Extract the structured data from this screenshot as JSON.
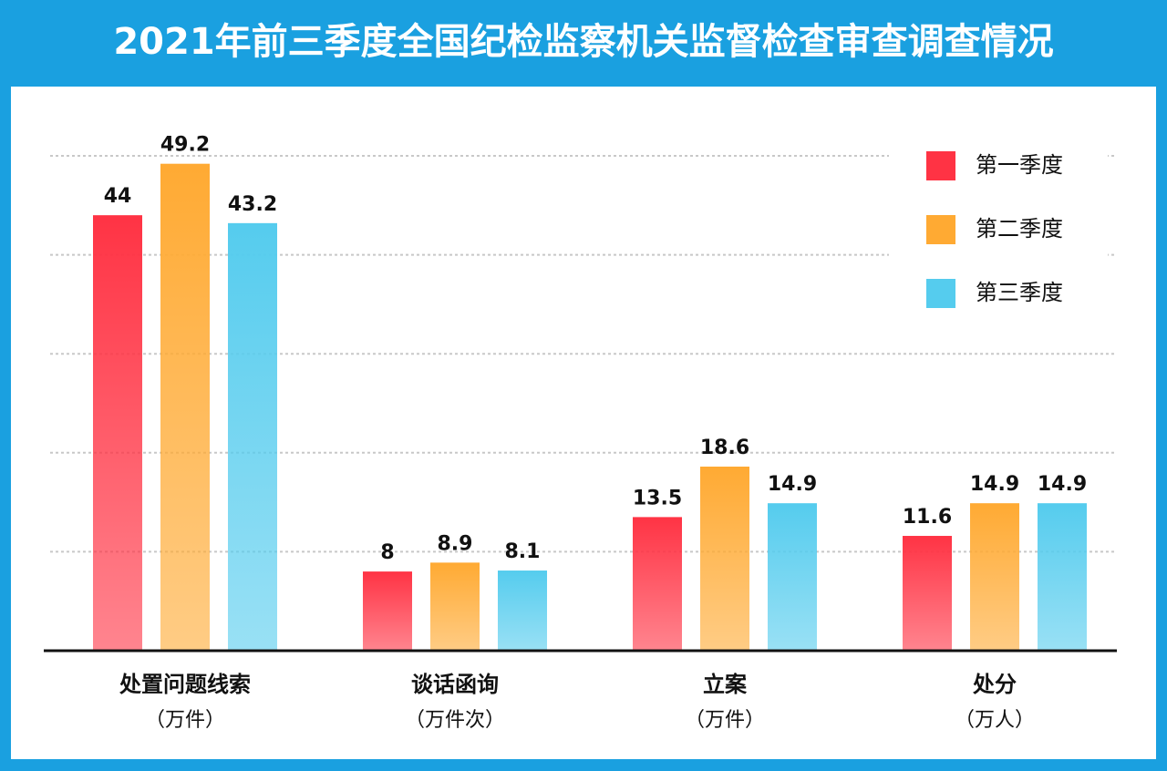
{
  "chart_data": {
    "type": "bar",
    "title": "2021年前三季度全国纪检监察机关监督检查审查调查情况",
    "categories": [
      "处置问题线索",
      "谈话函询",
      "立案",
      "处分"
    ],
    "category_units": [
      "（万件）",
      "（万件次）",
      "（万件）",
      "（万人）"
    ],
    "series": [
      {
        "name": "第一季度",
        "color": "#ff3344",
        "values": [
          44,
          8,
          13.5,
          11.6
        ]
      },
      {
        "name": "第二季度",
        "color": "#ffaa33",
        "values": [
          49.2,
          8.9,
          18.6,
          14.9
        ]
      },
      {
        "name": "第三季度",
        "color": "#55ccee",
        "values": [
          43.2,
          8.1,
          14.9,
          14.9
        ]
      }
    ],
    "ylim": [
      0,
      50
    ],
    "yticks": [
      0,
      10,
      20,
      30,
      40,
      50
    ],
    "grid": true,
    "legend": "upper right"
  }
}
